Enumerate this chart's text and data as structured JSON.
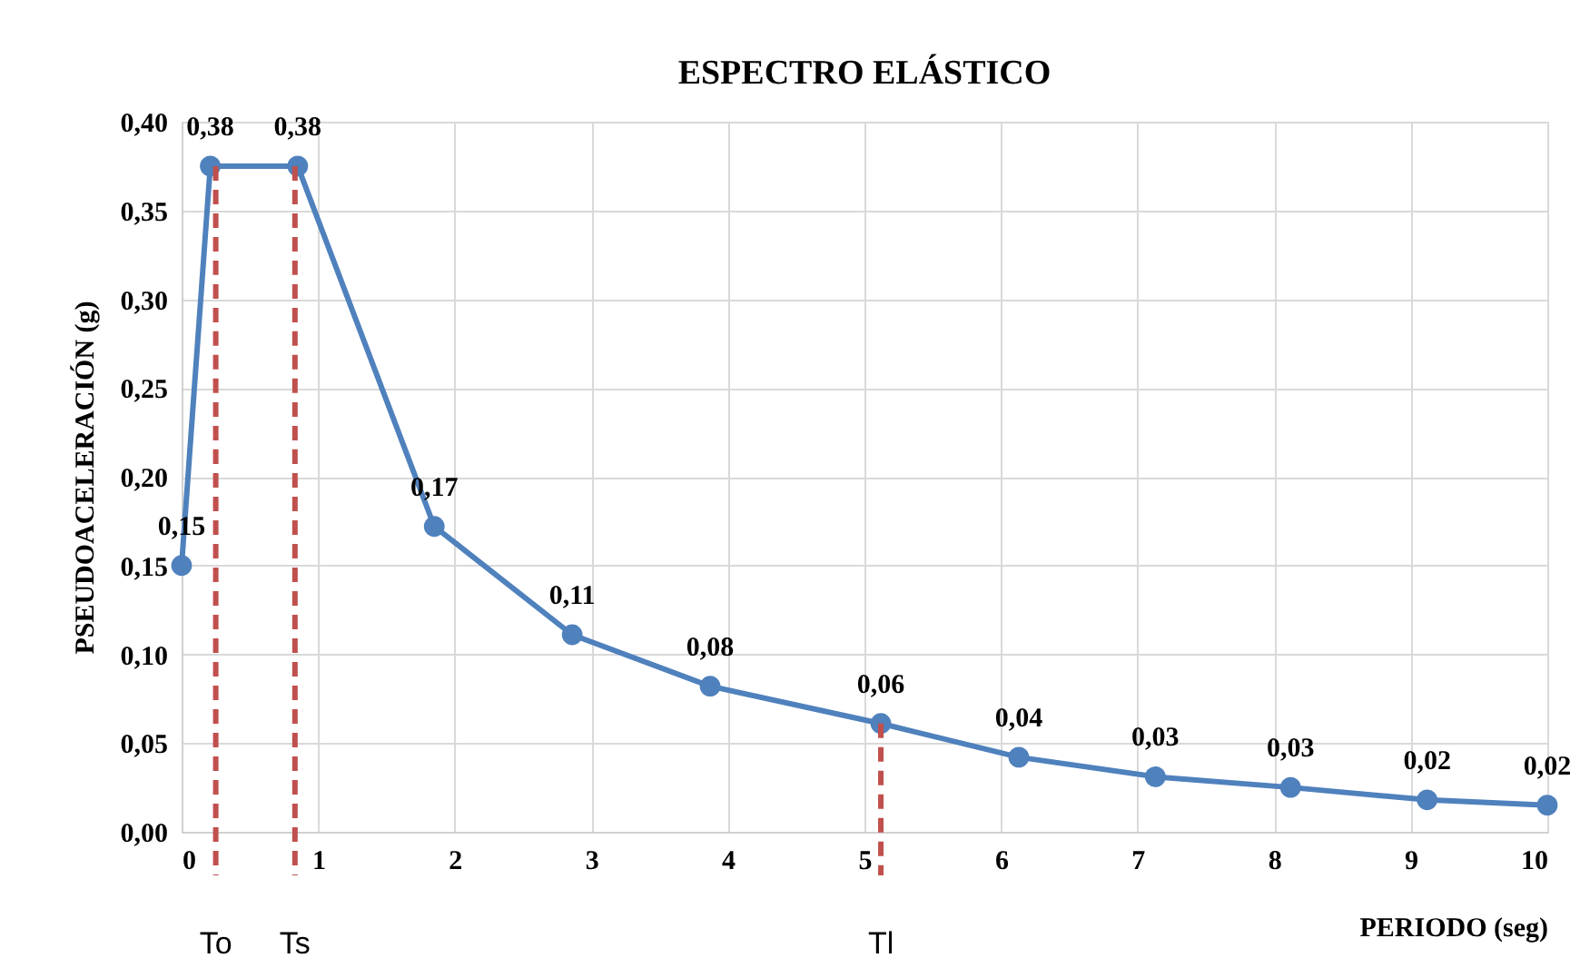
{
  "chart_data": {
    "type": "line",
    "title": "ESPECTRO ELÁSTICO",
    "xlabel": "PERIODO (seg)",
    "ylabel": "PSEUDOACELERACIÓN (g)",
    "series": [
      {
        "color": "#4f81bd",
        "x": [
          0,
          0.21,
          0.85,
          1.85,
          2.86,
          3.87,
          5.12,
          6.13,
          7.13,
          8.12,
          9.12,
          10
        ],
        "values": [
          0.15,
          0.375,
          0.375,
          0.172,
          0.111,
          0.082,
          0.061,
          0.042,
          0.031,
          0.025,
          0.018,
          0.015
        ],
        "value_labels": [
          "0,15",
          "0,38",
          "0,38",
          "0,17",
          "0,11",
          "0,08",
          "0,06",
          "0,04",
          "0,03",
          "0,03",
          "0,02",
          "0,02"
        ]
      }
    ],
    "xlim": [
      0,
      10
    ],
    "xticks": [
      0,
      1,
      2,
      3,
      4,
      5,
      6,
      7,
      8,
      9,
      10
    ],
    "ylim": [
      0,
      0.4
    ],
    "yticks": [
      {
        "value": 0,
        "label": "0,00"
      },
      {
        "value": 0.05,
        "label": "0,05"
      },
      {
        "value": 0.1,
        "label": "0,10"
      },
      {
        "value": 0.15,
        "label": "0,15"
      },
      {
        "value": 0.2,
        "label": "0,20"
      },
      {
        "value": 0.25,
        "label": "0,25"
      },
      {
        "value": 0.3,
        "label": "0,30"
      },
      {
        "value": 0.35,
        "label": "0,35"
      },
      {
        "value": 0.4,
        "label": "0,40"
      }
    ],
    "ref_lines": [
      {
        "axis": "x",
        "value": 0.25,
        "label": "To",
        "color": "#c0504d",
        "line_style": "dashed"
      },
      {
        "axis": "x",
        "value": 0.83,
        "label": "Ts",
        "color": "#c0504d",
        "line_style": "dashed"
      },
      {
        "axis": "x",
        "value": 5.12,
        "label": "Tl",
        "color": "#c0504d",
        "line_style": "dashed"
      }
    ],
    "grid": true,
    "marker": "circle",
    "line_style": "solid"
  }
}
